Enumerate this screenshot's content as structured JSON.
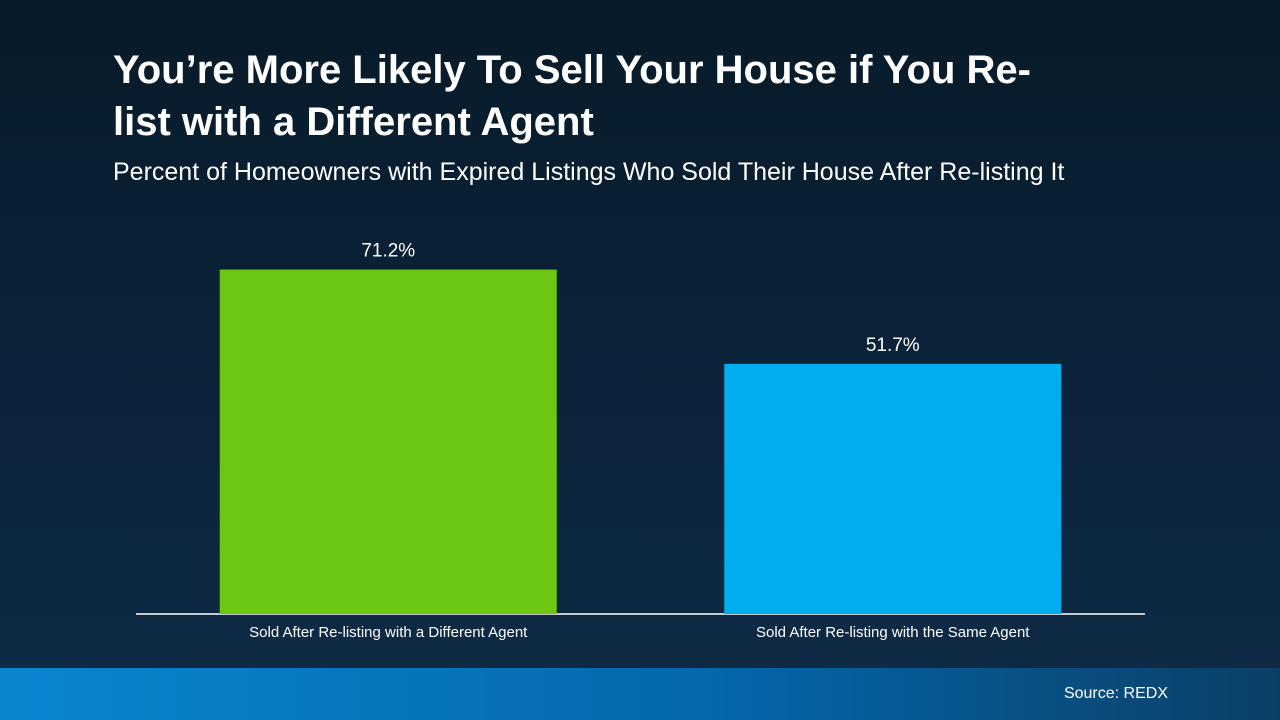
{
  "chart_data": {
    "type": "bar",
    "title": "You’re More Likely To Sell Your House if You Re-list with a Different Agent",
    "subtitle": "Percent of Homeowners with Expired Listings Who Sold Their House After Re-listing It",
    "categories": [
      "Sold After Re-listing with a Different Agent",
      "Sold After Re-listing with the Same Agent"
    ],
    "values": [
      71.2,
      51.7
    ],
    "value_labels": [
      "71.2%",
      "51.7%"
    ],
    "colors": [
      "#6cc712",
      "#00aeef"
    ],
    "ylim": [
      0,
      80
    ],
    "source": "Source: REDX"
  }
}
